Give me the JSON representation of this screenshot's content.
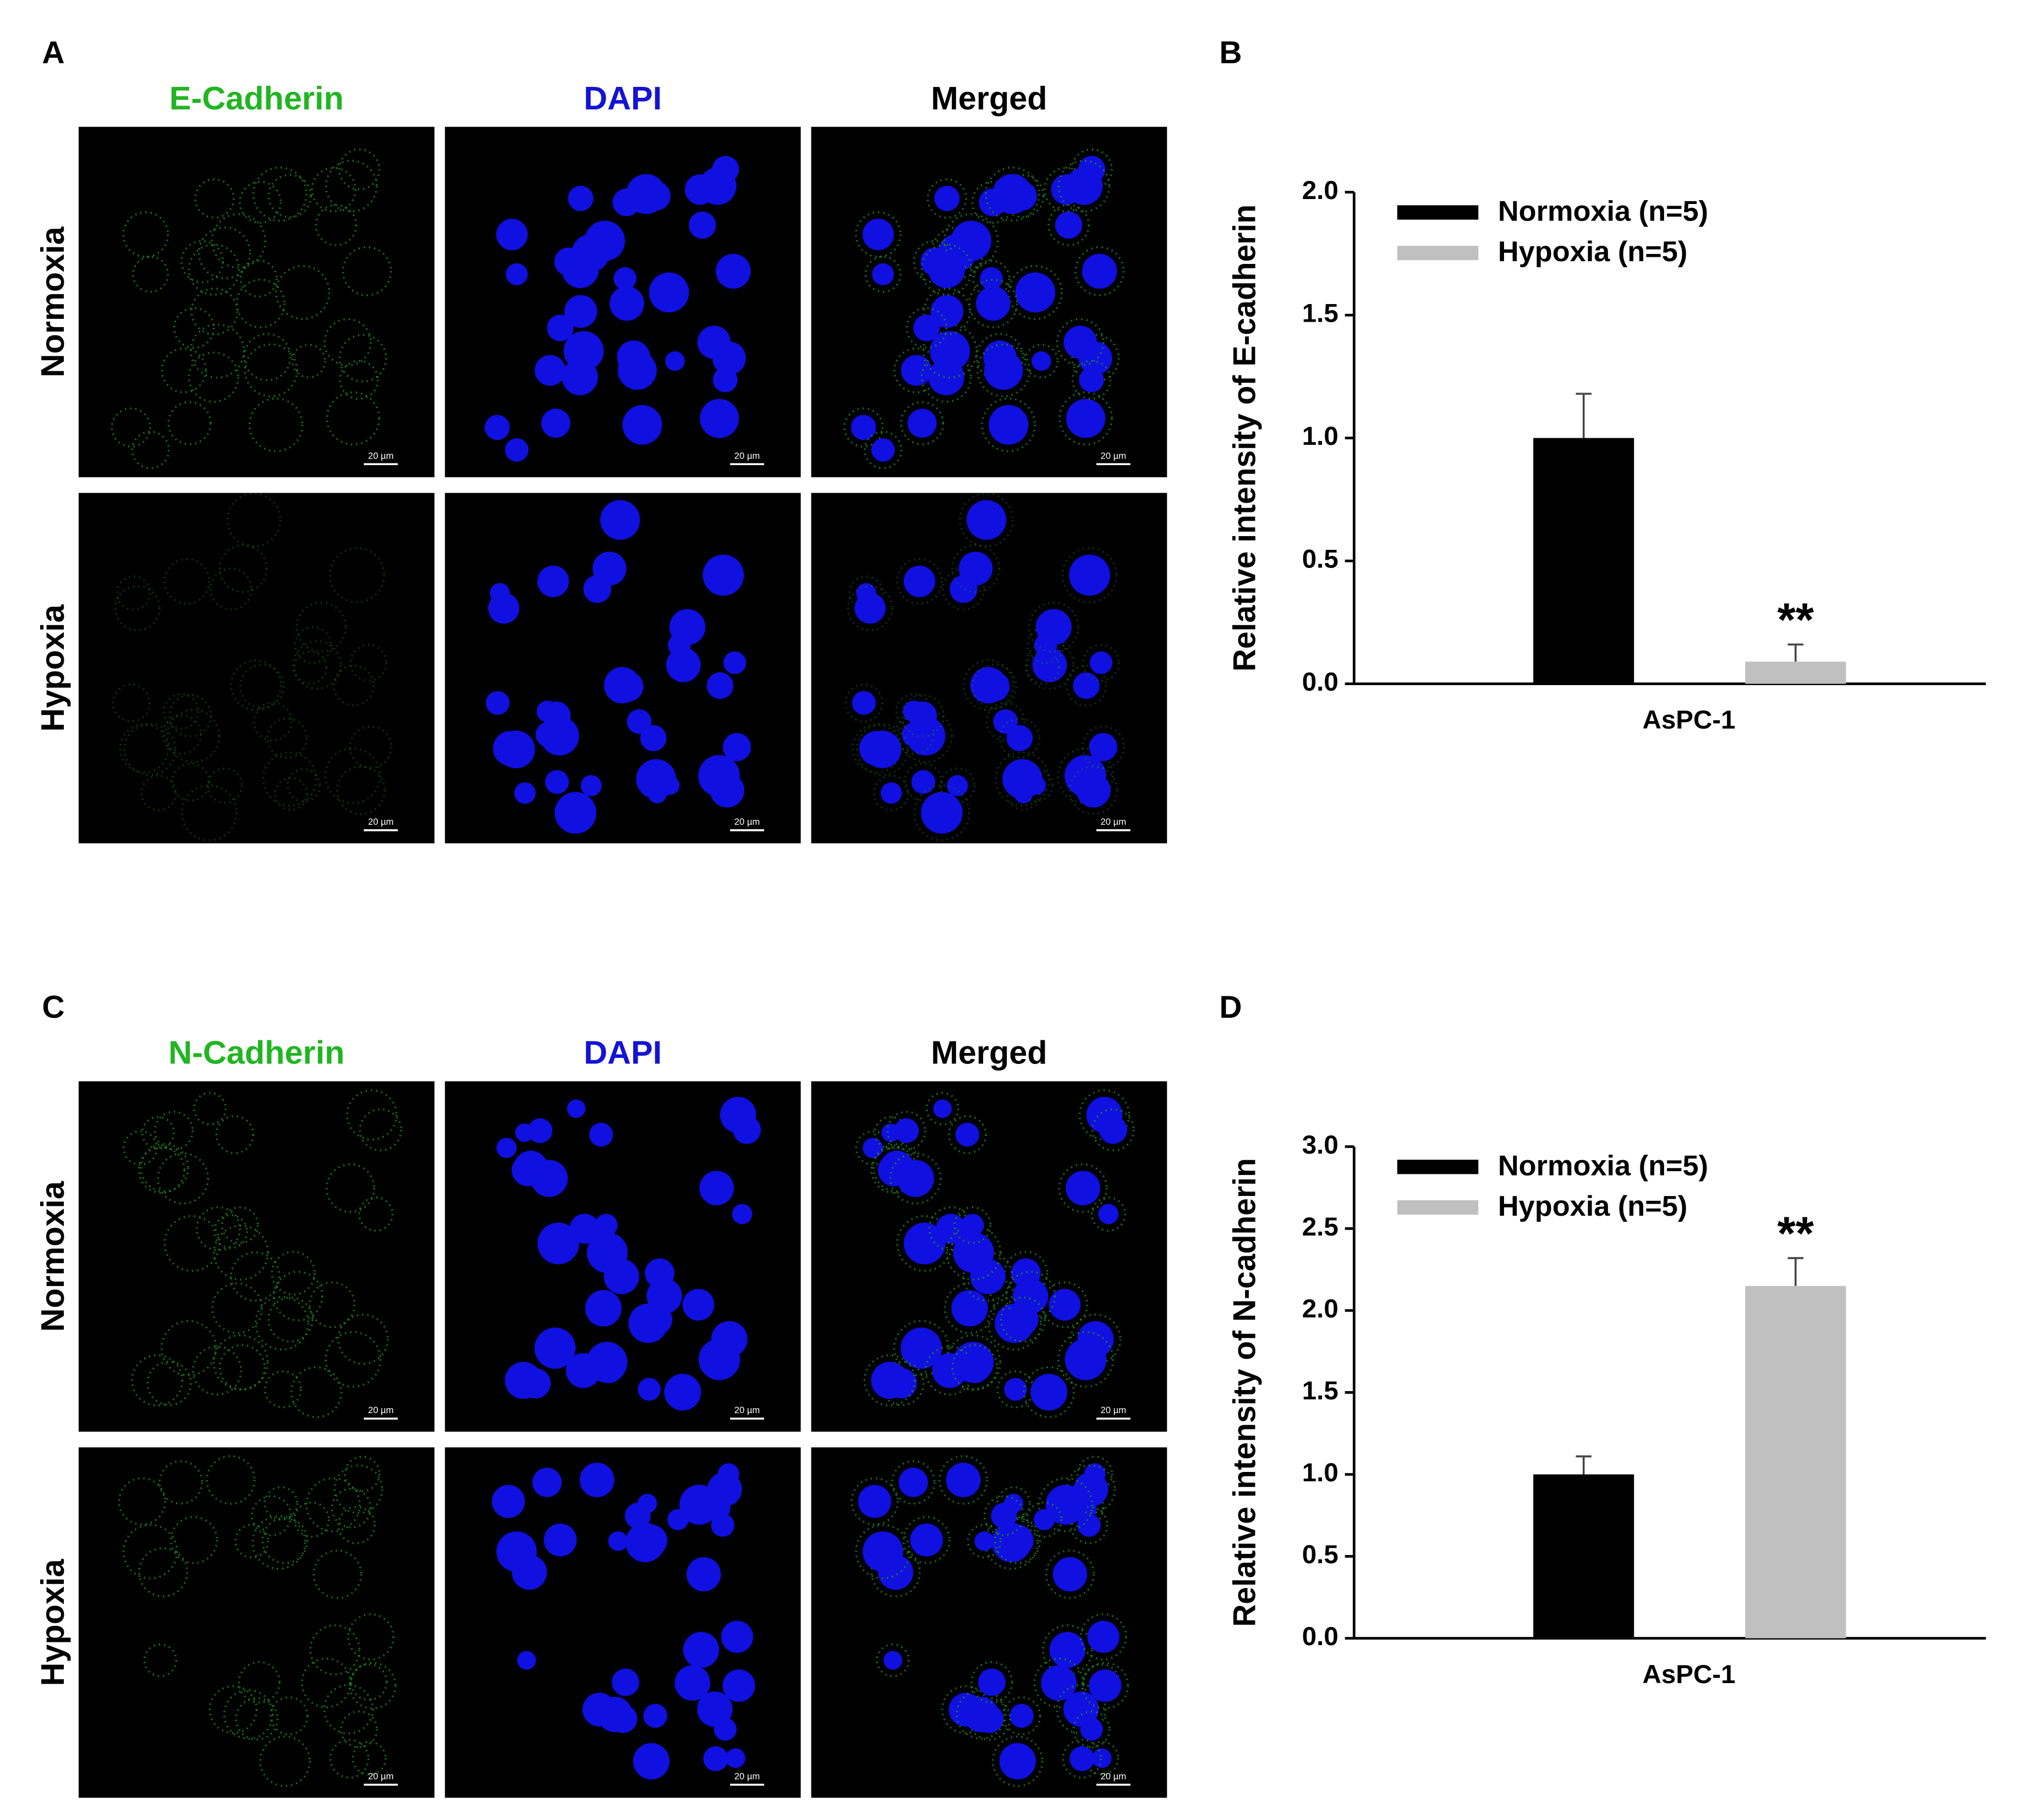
{
  "panels": [
    {
      "letter": "A",
      "channels": [
        "E-Cadherin",
        "DAPI",
        "Merged"
      ],
      "rows": [
        "Normoxia",
        "Hypoxia"
      ],
      "scale_bar": "20 µm"
    },
    {
      "letter": "C",
      "channels": [
        "N-Cadherin",
        "DAPI",
        "Merged"
      ],
      "rows": [
        "Normoxia",
        "Hypoxia"
      ],
      "scale_bar": "20 µm"
    }
  ],
  "chart_data": [
    {
      "letter": "B",
      "type": "bar",
      "categories": [
        "AsPC-1"
      ],
      "ylabel": "Relative intensity of E-cadherin",
      "ylim": [
        0,
        2
      ],
      "yticks": [
        {
          "value": 0,
          "label": "0.0"
        },
        {
          "value": 0.5,
          "label": "0.5"
        },
        {
          "value": 1,
          "label": "1.0"
        },
        {
          "value": 1.5,
          "label": "1.5"
        },
        {
          "value": 2,
          "label": "2.0"
        }
      ],
      "series": [
        {
          "name": "Normoxia (n=5)",
          "color": "#000000",
          "values": [
            1.0
          ],
          "errors": [
            0.18
          ]
        },
        {
          "name": "Hypoxia (n=5)",
          "color": "#c0c0c0",
          "values": [
            0.09
          ],
          "errors": [
            0.07
          ],
          "annotations": [
            "**"
          ]
        }
      ]
    },
    {
      "letter": "D",
      "type": "bar",
      "categories": [
        "AsPC-1"
      ],
      "ylabel": "Relative intensity of N-cadherin",
      "ylim": [
        0,
        3
      ],
      "yticks": [
        {
          "value": 0,
          "label": "0.0"
        },
        {
          "value": 0.5,
          "label": "0.5"
        },
        {
          "value": 1,
          "label": "1.0"
        },
        {
          "value": 1.5,
          "label": "1.5"
        },
        {
          "value": 2,
          "label": "2.0"
        },
        {
          "value": 2.5,
          "label": "2.5"
        },
        {
          "value": 3,
          "label": "3.0"
        }
      ],
      "series": [
        {
          "name": "Normoxia (n=5)",
          "color": "#000000",
          "values": [
            1.0
          ],
          "errors": [
            0.11
          ]
        },
        {
          "name": "Hypoxia (n=5)",
          "color": "#c0c0c0",
          "values": [
            2.15
          ],
          "errors": [
            0.17
          ],
          "annotations": [
            "**"
          ]
        }
      ]
    }
  ]
}
